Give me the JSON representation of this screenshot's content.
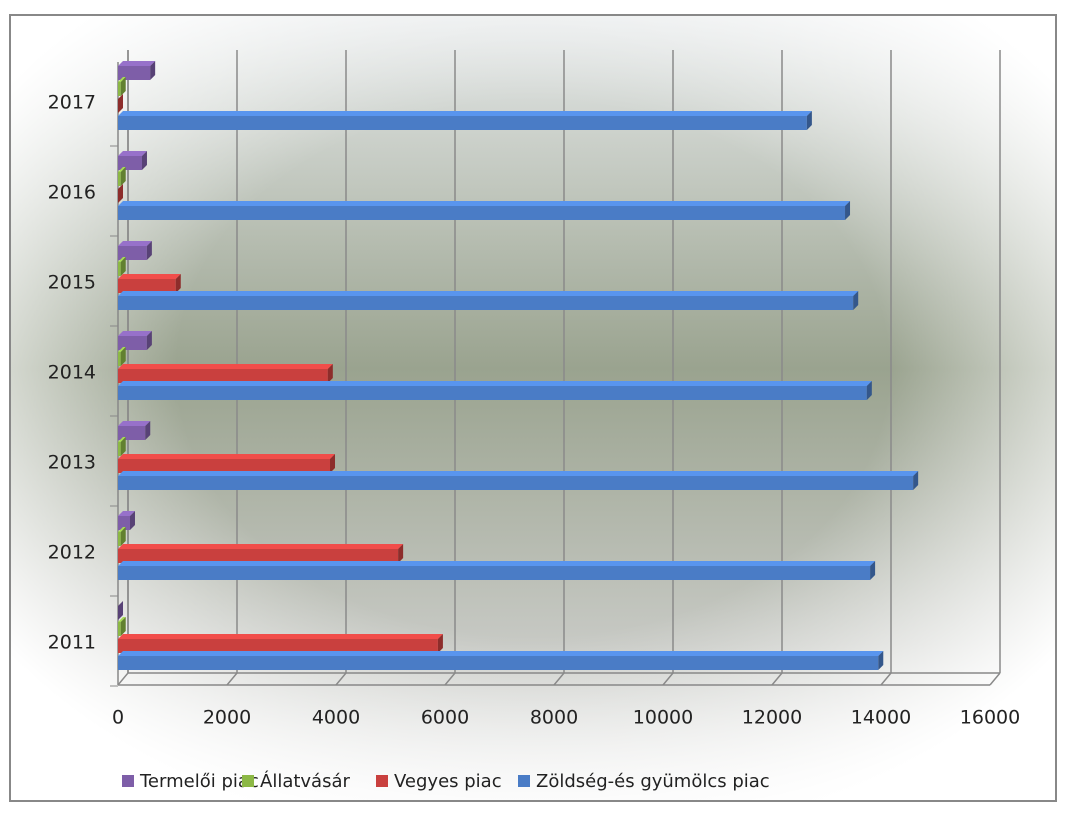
{
  "chart_data": {
    "type": "bar",
    "orientation": "horizontal",
    "categories": [
      "2011",
      "2012",
      "2013",
      "2014",
      "2015",
      "2016",
      "2017"
    ],
    "series": [
      {
        "name": "Termelői piac",
        "color": "#7e5ea8",
        "values": [
          0,
          220,
          500,
          530,
          530,
          440,
          590
        ]
      },
      {
        "name": "Állatvásár",
        "color": "#8cb845",
        "values": [
          50,
          50,
          50,
          50,
          50,
          50,
          50
        ]
      },
      {
        "name": "Vegyes piac",
        "color": "#c9403e",
        "values": [
          5870,
          5140,
          3890,
          3850,
          1060,
          0,
          0
        ]
      },
      {
        "name": "Zöldség-és gyümölcs piac",
        "color": "#4a7cc6",
        "values": [
          13950,
          13800,
          14590,
          13740,
          13490,
          13340,
          12640
        ]
      }
    ],
    "xlim": [
      0,
      16000
    ],
    "xticks": [
      0,
      2000,
      4000,
      6000,
      8000,
      10000,
      12000,
      14000,
      16000
    ],
    "grid": true,
    "legend": "bottom"
  }
}
